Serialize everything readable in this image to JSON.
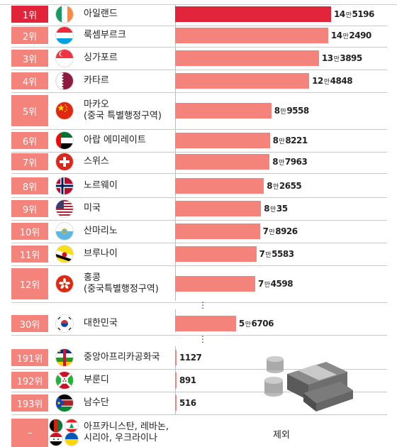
{
  "chart_data": {
    "type": "bar",
    "orientation": "horizontal",
    "unit_label": "만",
    "rows": [
      {
        "rank": "1위",
        "name": "아일랜드",
        "value": 145196,
        "label_big": "14",
        "label_small": "5196",
        "flag": "ireland-flag-icon"
      },
      {
        "rank": "2위",
        "name": "룩셈부르크",
        "value": 142490,
        "label_big": "14",
        "label_small": "2490",
        "flag": "luxembourg-flag-icon"
      },
      {
        "rank": "3위",
        "name": "싱가포르",
        "value": 133895,
        "label_big": "13",
        "label_small": "3895",
        "flag": "singapore-flag-icon"
      },
      {
        "rank": "4위",
        "name": "카타르",
        "value": 124848,
        "label_big": "12",
        "label_small": "4848",
        "flag": "qatar-flag-icon"
      },
      {
        "rank": "5위",
        "name": "마카오\n(중국 특별행정구역)",
        "value": 89558,
        "label_big": "8",
        "label_small": "9558",
        "flag": "china-flag-icon"
      },
      {
        "rank": "6위",
        "name": "아랍 에미레이트",
        "value": 88221,
        "label_big": "8",
        "label_small": "8221",
        "flag": "uae-flag-icon"
      },
      {
        "rank": "7위",
        "name": "스위스",
        "value": 87963,
        "label_big": "8",
        "label_small": "7963",
        "flag": "switzerland-flag-icon"
      },
      {
        "rank": "8위",
        "name": "노르웨이",
        "value": 82655,
        "label_big": "8",
        "label_small": "2655",
        "flag": "norway-flag-icon"
      },
      {
        "rank": "9위",
        "name": "미국",
        "value": 80035,
        "label_big": "8",
        "label_small": "35",
        "flag": "usa-flag-icon"
      },
      {
        "rank": "10위",
        "name": "산마리노",
        "value": 78926,
        "label_big": "7",
        "label_small": "8926",
        "flag": "san-marino-flag-icon"
      },
      {
        "rank": "11위",
        "name": "브루나이",
        "value": 75583,
        "label_big": "7",
        "label_small": "5583",
        "flag": "brunei-flag-icon"
      },
      {
        "rank": "12위",
        "name": "홍콩\n(중국특별행정구역)",
        "value": 74598,
        "label_big": "7",
        "label_small": "4598",
        "flag": "hong-kong-flag-icon"
      },
      {
        "rank": "30위",
        "name": "대한민국",
        "value": 56706,
        "label_big": "5",
        "label_small": "6706",
        "flag": "south-korea-flag-icon"
      },
      {
        "rank": "191위",
        "name": "중앙아프리카공화국",
        "value": 1127,
        "label_big": "",
        "label_small": "1127",
        "flag": "central-african-republic-flag-icon"
      },
      {
        "rank": "192위",
        "name": "부룬디",
        "value": 891,
        "label_big": "",
        "label_small": "891",
        "flag": "burundi-flag-icon"
      },
      {
        "rank": "193위",
        "name": "남수단",
        "value": 516,
        "label_big": "",
        "label_small": "516",
        "flag": "south-sudan-flag-icon"
      }
    ],
    "excluded": {
      "rank": "–",
      "names": "아프카니스탄, 레바논,\n시리아, 우크라이나",
      "label": "제외"
    },
    "ellipsis": "⋮",
    "colors": {
      "rank_first": "#e2243b",
      "rank_other": "#f4837b",
      "bar_first": "#e2243b",
      "bar_other": "#f4837b",
      "separator": "#c9c9c9"
    },
    "icons": [
      "money-stack-icon",
      "coin-stack-icon"
    ]
  }
}
